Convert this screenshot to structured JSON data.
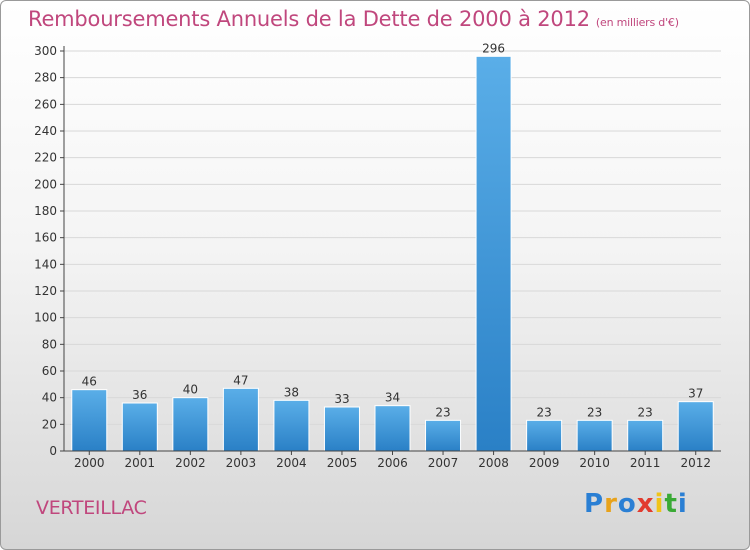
{
  "header": {
    "title": "Remboursements Annuels de la Dette de 2000 à 2012",
    "unit": "(en milliers d'€)"
  },
  "footer": {
    "commune": "VERTEILLAC",
    "logo_text": "Proxiti",
    "logo_colors": [
      "#2a7fd4",
      "#e8a21a",
      "#2a7fd4",
      "#e23b2e",
      "#f0c419",
      "#3aaa35",
      "#2a7fd4"
    ]
  },
  "colors": {
    "bar_top": "#5aaee8",
    "bar_bottom": "#2a80c6",
    "title": "#c0477d"
  },
  "chart_data": {
    "type": "bar",
    "categories": [
      "2000",
      "2001",
      "2002",
      "2003",
      "2004",
      "2005",
      "2006",
      "2007",
      "2008",
      "2009",
      "2010",
      "2011",
      "2012"
    ],
    "values": [
      46,
      36,
      40,
      47,
      38,
      33,
      34,
      23,
      296,
      23,
      23,
      23,
      37
    ],
    "data_labels": [
      "46",
      "36",
      "40",
      "47",
      "38",
      "33",
      "34",
      "23",
      "296",
      "23",
      "23",
      "23",
      "37"
    ],
    "ylim": [
      0,
      300
    ],
    "yticks": [
      "0",
      "20",
      "40",
      "60",
      "80",
      "100",
      "120",
      "140",
      "160",
      "180",
      "200",
      "220",
      "240",
      "260",
      "280",
      "300"
    ],
    "grid": true
  }
}
